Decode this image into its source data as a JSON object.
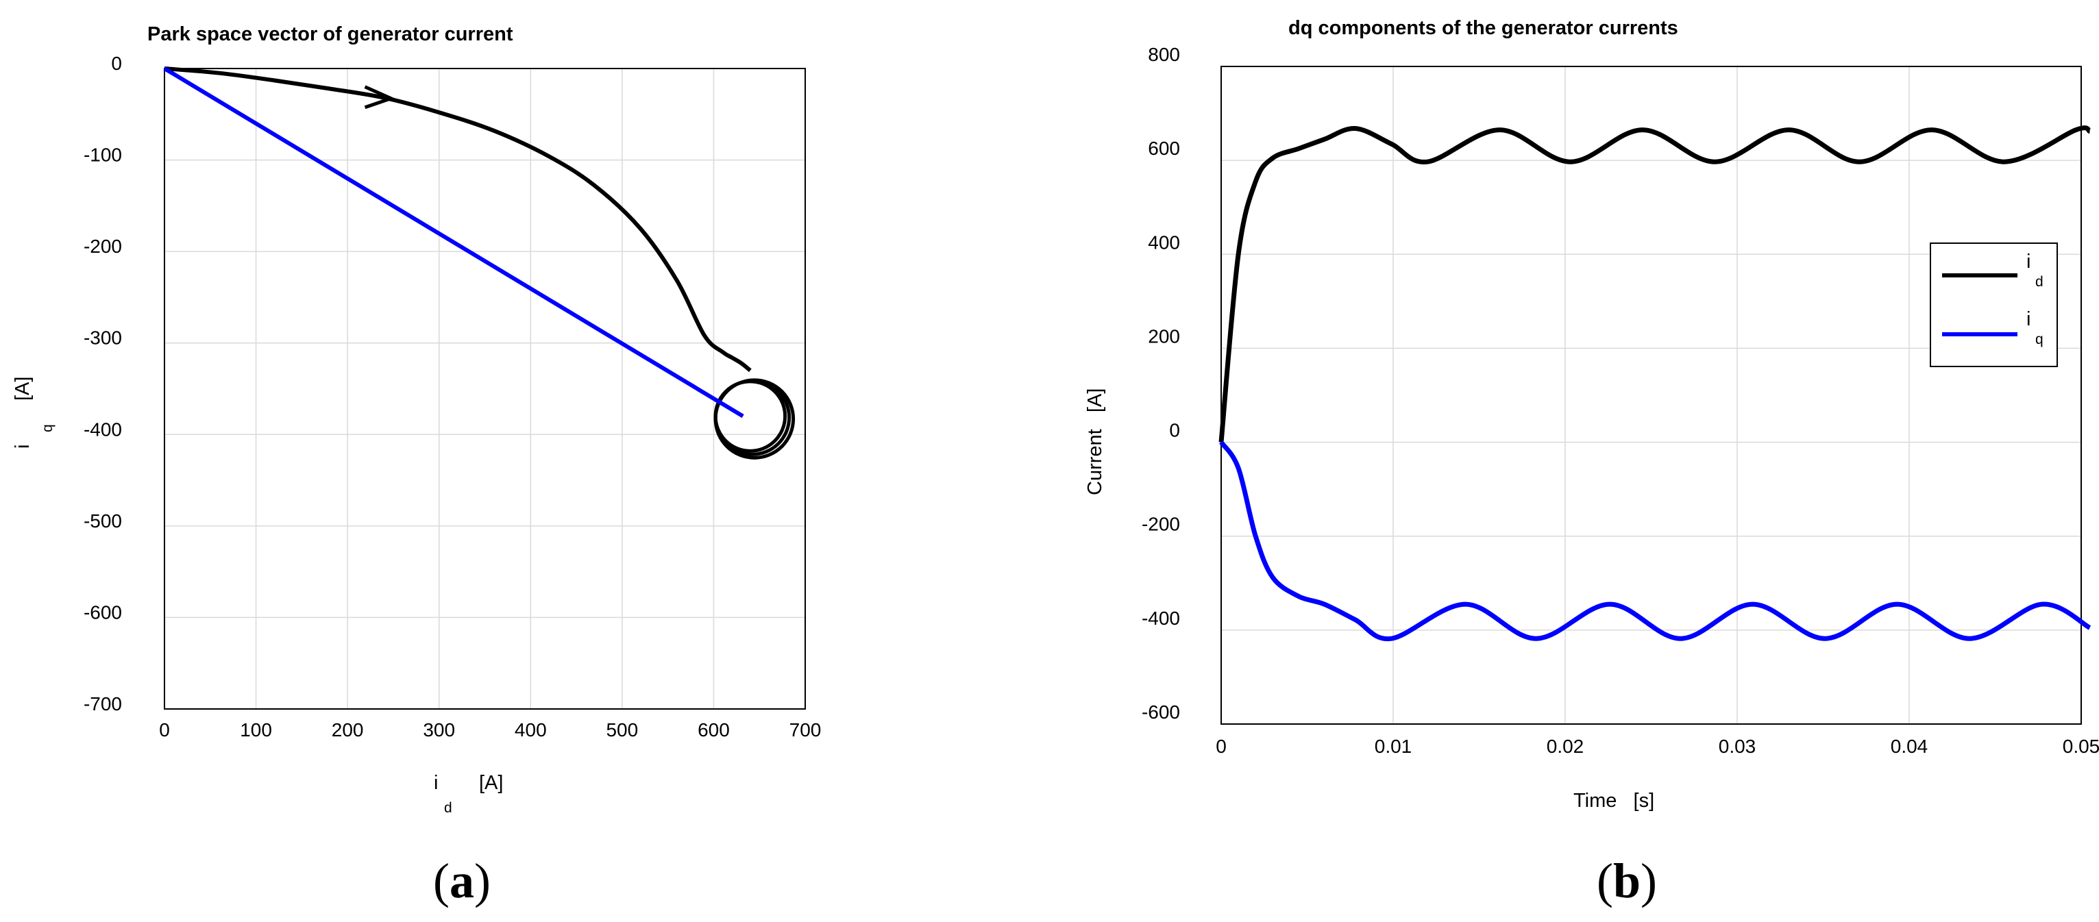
{
  "chart_data": [
    {
      "type": "line",
      "panel_label": "a",
      "title": "Park space vector of generator current",
      "xlabel": {
        "symbol": "i",
        "subscript": "d",
        "unit": "[A]"
      },
      "ylabel": {
        "symbol": "i",
        "subscript": "q",
        "unit": "[A]"
      },
      "xlim": [
        0,
        700
      ],
      "ylim": [
        -700,
        0
      ],
      "xticks": [
        0,
        100,
        200,
        300,
        400,
        500,
        600,
        700
      ],
      "yticks": [
        0,
        -100,
        -200,
        -300,
        -400,
        -500,
        -600,
        -700
      ],
      "grid": true,
      "series": [
        {
          "color": "#000000",
          "x": [
            0,
            60,
            120,
            180,
            240,
            300,
            360,
            420,
            470,
            520,
            560,
            590,
            610,
            620,
            630,
            640
          ],
          "y": [
            0,
            -5,
            -13,
            -22,
            -32,
            -48,
            -68,
            -96,
            -128,
            -175,
            -232,
            -292,
            -310,
            -316,
            -322,
            -330
          ],
          "direction_arrow_at": [
            240,
            -32
          ],
          "oscillation": {
            "center": [
              640,
              -380
            ],
            "radius_x": 38,
            "radius_y": 38
          }
        },
        {
          "color": "#0000ff",
          "x": [
            0,
            632
          ],
          "y": [
            0,
            -380
          ]
        }
      ]
    },
    {
      "type": "line",
      "panel_label": "b",
      "title": "dq components of the generator currents",
      "xlabel": "Time   [s]",
      "ylabel": "Current   [A]",
      "xlim": [
        0,
        0.05
      ],
      "ylim": [
        -600,
        800
      ],
      "xticks": [
        0,
        0.01,
        0.02,
        0.03,
        0.04,
        0.05
      ],
      "yticks": [
        800,
        600,
        400,
        200,
        0,
        -200,
        -400,
        -600
      ],
      "grid": true,
      "legend": "right",
      "series": [
        {
          "name": "i",
          "subscript": "d",
          "color": "#000000",
          "x": [
            0,
            0.001,
            0.002,
            0.003,
            0.0045,
            0.006,
            0.0078,
            0.0099,
            0.012,
            0.0162,
            0.0203,
            0.0245,
            0.0287,
            0.033,
            0.0371,
            0.0413,
            0.0455,
            0.0497,
            0.0505
          ],
          "y": [
            0,
            400,
            555,
            605,
            625,
            645,
            668,
            635,
            597,
            665,
            597,
            665,
            597,
            665,
            597,
            665,
            597,
            665,
            662
          ]
        },
        {
          "name": "i",
          "subscript": "q",
          "color": "#0000ff",
          "x": [
            0,
            0.001,
            0.002,
            0.003,
            0.0045,
            0.006,
            0.0078,
            0.0099,
            0.0142,
            0.0183,
            0.0226,
            0.0267,
            0.0309,
            0.0351,
            0.0393,
            0.0435,
            0.0477,
            0.0505
          ],
          "y": [
            0,
            -55,
            -200,
            -288,
            -328,
            -345,
            -378,
            -418,
            -345,
            -418,
            -345,
            -418,
            -345,
            -418,
            -345,
            -418,
            -345,
            -395
          ]
        }
      ]
    }
  ]
}
